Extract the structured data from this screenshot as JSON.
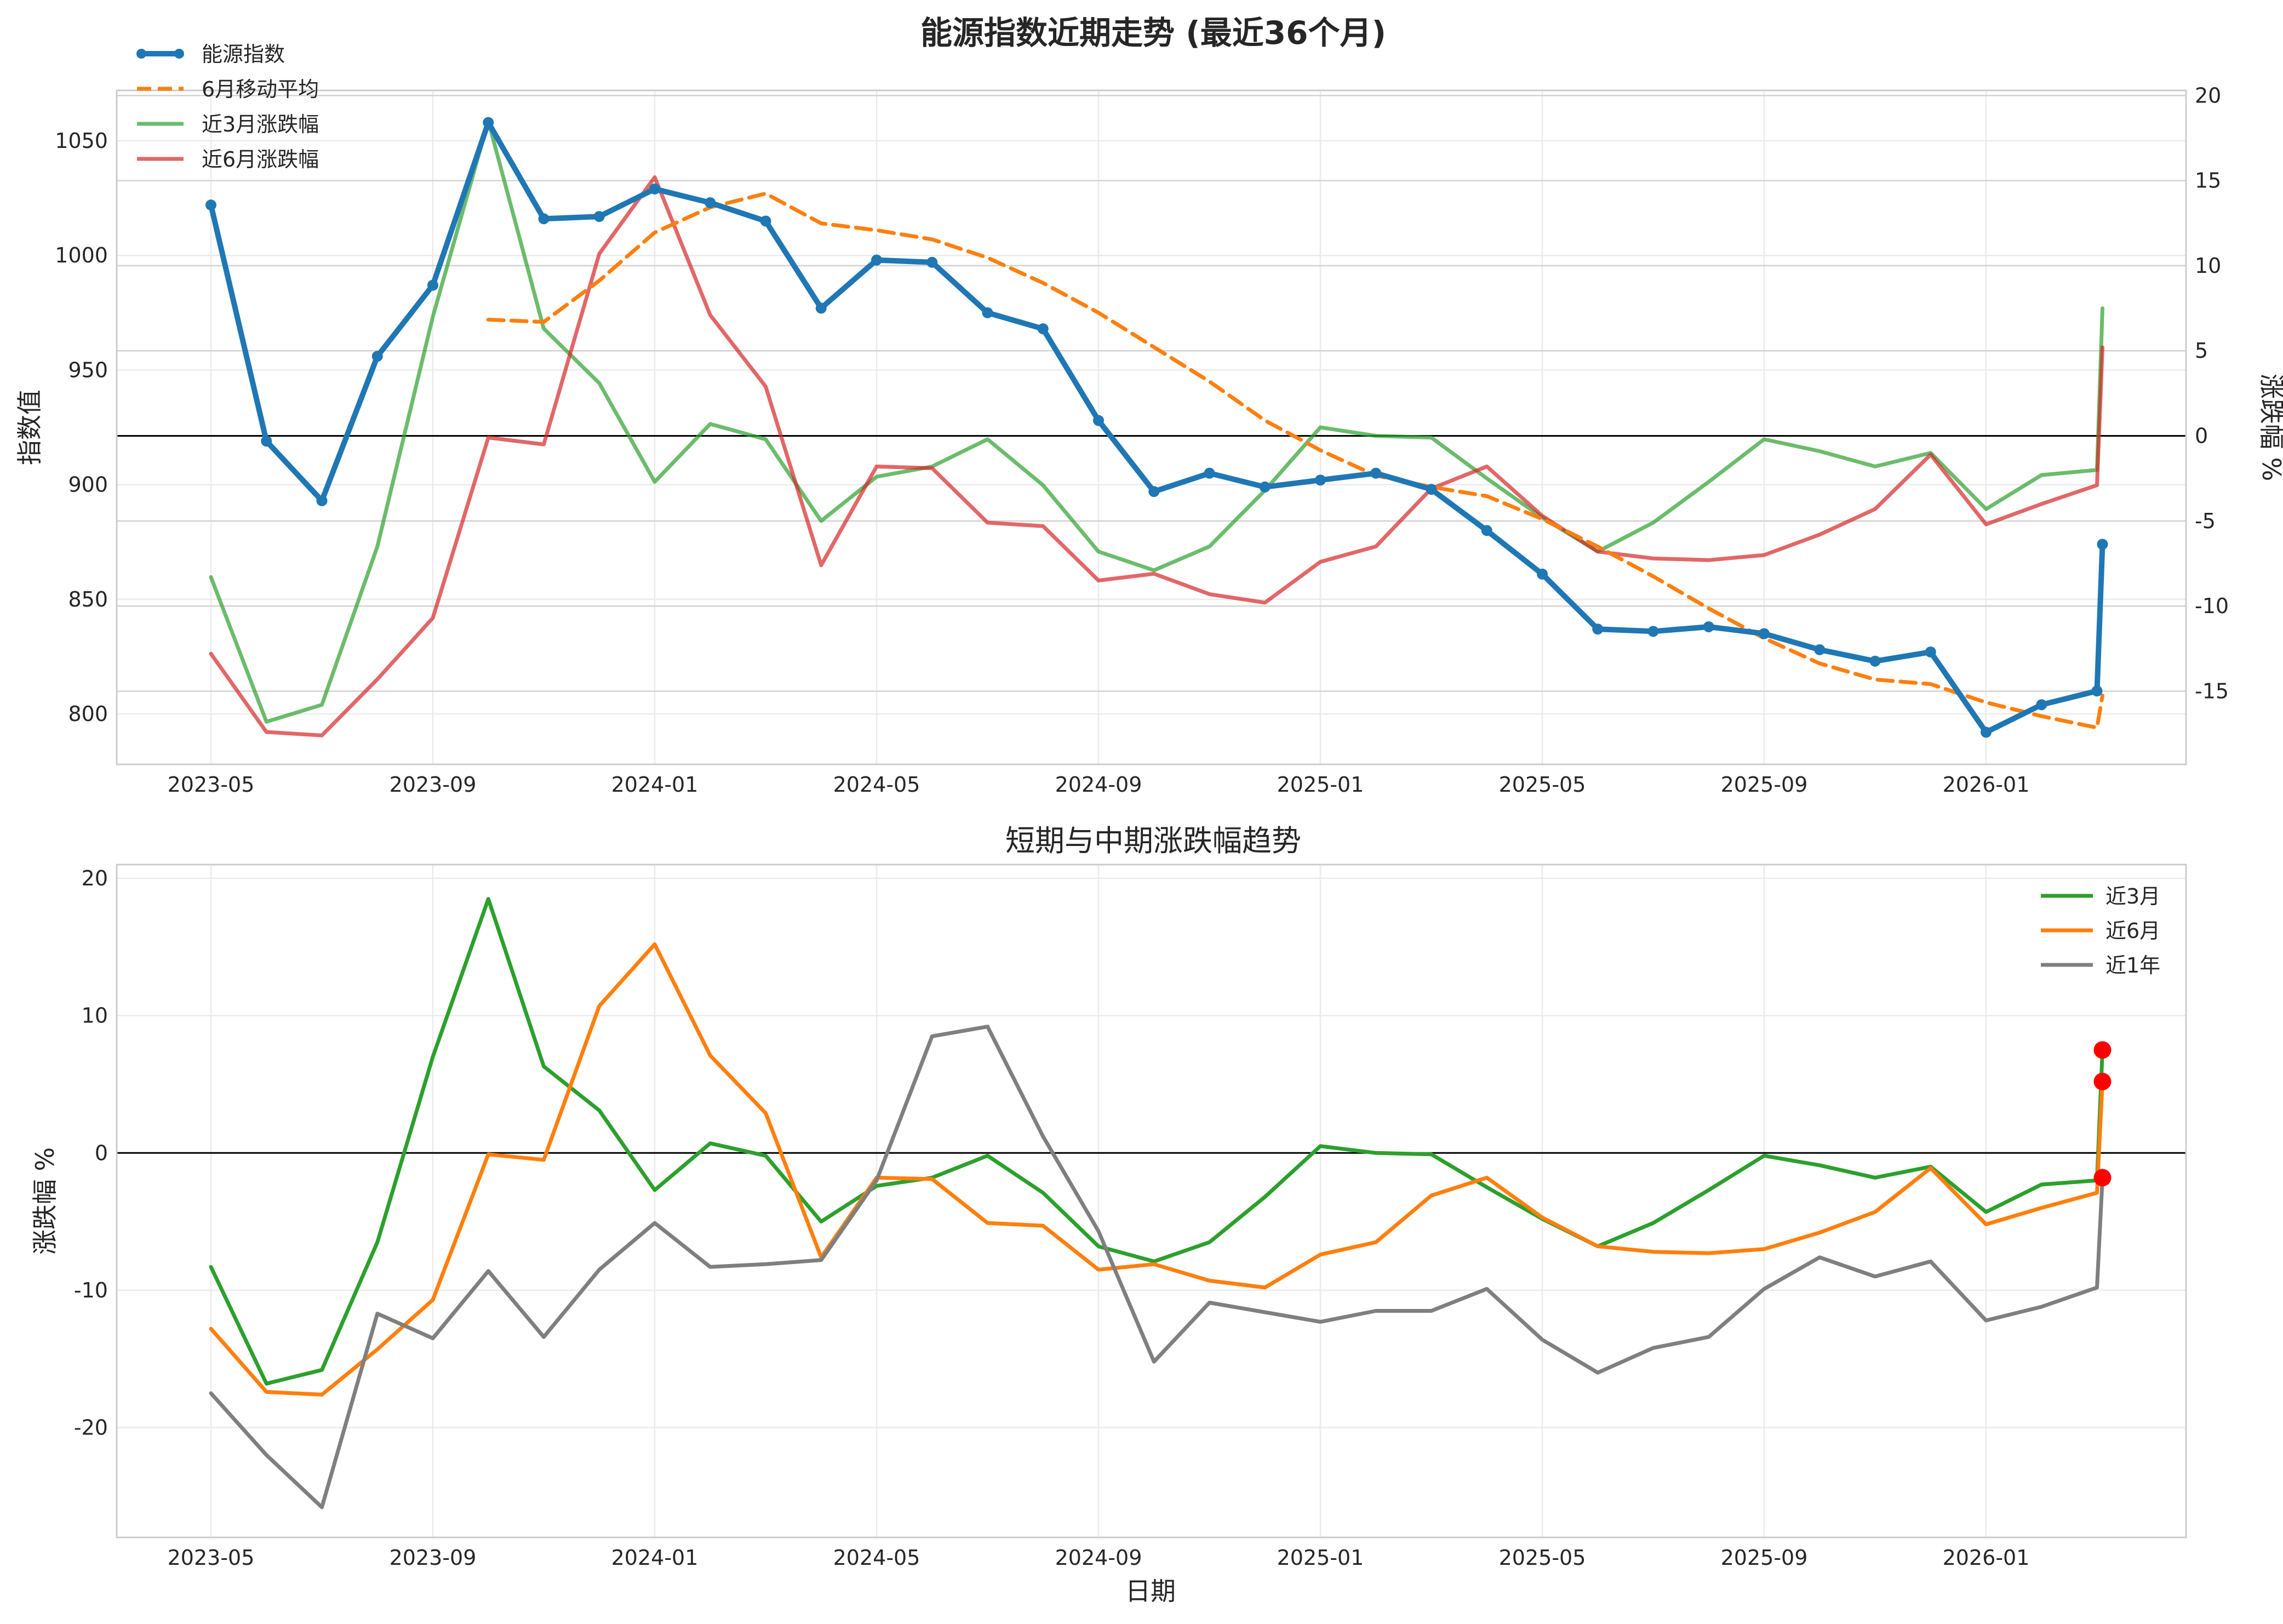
{
  "chart_data": [
    {
      "type": "line",
      "title": "能源指数近期走势 (最近36个月)",
      "xlabel": "",
      "ylabel": "指数值",
      "y2label": "涨跌幅 %",
      "ylim": [
        778,
        1072
      ],
      "y2lim": [
        -19.3,
        20.3
      ],
      "yticks": [
        800,
        850,
        900,
        950,
        1000,
        1050
      ],
      "y2ticks": [
        -15,
        -10,
        -5,
        0,
        5,
        10,
        15,
        20
      ],
      "xticks": [
        "2023-05",
        "2023-09",
        "2024-01",
        "2024-05",
        "2024-09",
        "2025-01",
        "2025-05",
        "2025-09",
        "2026-01"
      ],
      "x": [
        "2023-05",
        "2023-06",
        "2023-07",
        "2023-08",
        "2023-09",
        "2023-10",
        "2023-11",
        "2023-12",
        "2024-01",
        "2024-02",
        "2024-03",
        "2024-04",
        "2024-05",
        "2024-06",
        "2024-07",
        "2024-08",
        "2024-09",
        "2024-10",
        "2024-11",
        "2024-12",
        "2025-01",
        "2025-02",
        "2025-03",
        "2025-04",
        "2025-05",
        "2025-06",
        "2025-07",
        "2025-08",
        "2025-09",
        "2025-10",
        "2025-11",
        "2025-12",
        "2026-01",
        "2026-02",
        "2026-03",
        "2026-03-04"
      ],
      "grid": true,
      "legend_position": "top-left",
      "series": [
        {
          "name": "能源指数",
          "axis": "left",
          "color": "#1f77b4",
          "style": "solid-markers",
          "values": [
            1022,
            919,
            893,
            956,
            987,
            1058,
            1016,
            1017,
            1029,
            1023,
            1015,
            977,
            998,
            997,
            975,
            968,
            928,
            897,
            905,
            899,
            902,
            905,
            898,
            880,
            861,
            837,
            836,
            838,
            835,
            828,
            823,
            827,
            792,
            804,
            810,
            874
          ]
        },
        {
          "name": "6月移动平均",
          "axis": "left",
          "color": "#ff7f0e",
          "style": "dashed",
          "values": [
            null,
            null,
            null,
            null,
            null,
            972,
            971,
            989,
            1010,
            1021,
            1027,
            1014,
            1011,
            1007,
            999,
            988,
            975,
            960,
            945,
            928,
            915,
            904,
            899,
            895,
            885,
            873,
            860,
            846,
            833,
            822,
            815,
            813,
            805,
            799,
            794,
            808
          ]
        },
        {
          "name": "近3月涨跌幅",
          "axis": "right",
          "color": "#2ca02c",
          "opacity": 0.7,
          "style": "solid",
          "values": [
            -8.3,
            -16.8,
            -15.8,
            -6.5,
            7.0,
            18.5,
            6.3,
            3.1,
            -2.7,
            0.7,
            -0.2,
            -5.0,
            -2.4,
            -1.8,
            -0.2,
            -2.9,
            -6.8,
            -7.9,
            -6.5,
            -3.2,
            0.5,
            0.0,
            -0.1,
            -2.5,
            -4.8,
            -6.8,
            -5.1,
            -2.7,
            -0.2,
            -0.9,
            -1.8,
            -1.0,
            -4.3,
            -2.3,
            -2.0,
            7.5
          ]
        },
        {
          "name": "近6月涨跌幅",
          "axis": "right",
          "color": "#d62728",
          "opacity": 0.7,
          "style": "solid",
          "values": [
            -12.8,
            -17.4,
            -17.6,
            -14.3,
            -10.7,
            -0.1,
            -0.5,
            10.7,
            15.2,
            7.1,
            2.9,
            -7.6,
            -1.8,
            -1.9,
            -5.1,
            -5.3,
            -8.5,
            -8.1,
            -9.3,
            -9.8,
            -7.4,
            -6.5,
            -3.1,
            -1.8,
            -4.7,
            -6.8,
            -7.2,
            -7.3,
            -7.0,
            -5.8,
            -4.3,
            -1.1,
            -5.2,
            -4.0,
            -2.9,
            5.2
          ]
        }
      ]
    },
    {
      "type": "line",
      "title": "短期与中期涨跌幅趋势",
      "xlabel": "日期",
      "ylabel": "涨跌幅 %",
      "ylim": [
        -28,
        21
      ],
      "yticks": [
        -20,
        -10,
        0,
        10,
        20
      ],
      "xticks": [
        "2023-05",
        "2023-09",
        "2024-01",
        "2024-05",
        "2024-09",
        "2025-01",
        "2025-05",
        "2025-09",
        "2026-01"
      ],
      "x": [
        "2023-05",
        "2023-06",
        "2023-07",
        "2023-08",
        "2023-09",
        "2023-10",
        "2023-11",
        "2023-12",
        "2024-01",
        "2024-02",
        "2024-03",
        "2024-04",
        "2024-05",
        "2024-06",
        "2024-07",
        "2024-08",
        "2024-09",
        "2024-10",
        "2024-11",
        "2024-12",
        "2025-01",
        "2025-02",
        "2025-03",
        "2025-04",
        "2025-05",
        "2025-06",
        "2025-07",
        "2025-08",
        "2025-09",
        "2025-10",
        "2025-11",
        "2025-12",
        "2026-01",
        "2026-02",
        "2026-03",
        "2026-03-04"
      ],
      "grid": true,
      "legend_position": "top-right",
      "highlight_color": "#ff0000",
      "series": [
        {
          "name": "近3月",
          "color": "#2ca02c",
          "values": [
            -8.3,
            -16.8,
            -15.8,
            -6.5,
            7.0,
            18.5,
            6.3,
            3.1,
            -2.7,
            0.7,
            -0.2,
            -5.0,
            -2.4,
            -1.8,
            -0.2,
            -2.9,
            -6.8,
            -7.9,
            -6.5,
            -3.2,
            0.5,
            0.0,
            -0.1,
            -2.5,
            -4.8,
            -6.8,
            -5.1,
            -2.7,
            -0.2,
            -0.9,
            -1.8,
            -1.0,
            -4.3,
            -2.3,
            -2.0,
            7.5
          ]
        },
        {
          "name": "近6月",
          "color": "#ff7f0e",
          "values": [
            -12.8,
            -17.4,
            -17.6,
            -14.3,
            -10.7,
            -0.1,
            -0.5,
            10.7,
            15.2,
            7.1,
            2.9,
            -7.6,
            -1.8,
            -1.9,
            -5.1,
            -5.3,
            -8.5,
            -8.1,
            -9.3,
            -9.8,
            -7.4,
            -6.5,
            -3.1,
            -1.8,
            -4.7,
            -6.8,
            -7.2,
            -7.3,
            -7.0,
            -5.8,
            -4.3,
            -1.1,
            -5.2,
            -4.0,
            -2.9,
            5.2
          ]
        },
        {
          "name": "近1年",
          "color": "#7f7f7f",
          "values": [
            -17.5,
            -22.0,
            -25.8,
            -11.7,
            -13.5,
            -8.6,
            -13.4,
            -8.5,
            -5.1,
            -8.3,
            -8.1,
            -7.8,
            -2.0,
            8.5,
            9.2,
            1.2,
            -5.7,
            -15.2,
            -10.9,
            -11.6,
            -12.3,
            -11.5,
            -11.5,
            -9.9,
            -13.6,
            -16.0,
            -14.2,
            -13.4,
            -9.9,
            -7.6,
            -9.0,
            -7.9,
            -12.2,
            -11.2,
            -9.8,
            -1.8
          ]
        }
      ]
    }
  ]
}
